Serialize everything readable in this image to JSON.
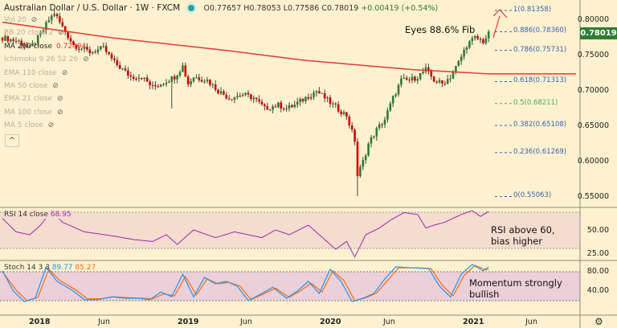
{
  "header": {
    "symbol": "Australian Dollar / U.S. Dollar · 1W · FXCM",
    "open": "O0.77657",
    "high": "H0.78053",
    "low": "L0.77586",
    "close": "C0.78019",
    "change": "+0.00419 (+0.54%)"
  },
  "indicators": [
    {
      "label": "Vol 20",
      "active": false
    },
    {
      "label": "BB 20 close 2",
      "active": false
    },
    {
      "label": "MA 200 close",
      "value": "0.72404",
      "active": true
    },
    {
      "label": "Ichimoku 9 26 52 26",
      "active": false
    },
    {
      "label": "EMA 110 close",
      "active": false
    },
    {
      "label": "MA 50 close",
      "active": false
    },
    {
      "label": "EMA 21 close",
      "active": false
    },
    {
      "label": "MA 100 close",
      "active": false
    },
    {
      "label": "MA 5 close",
      "active": false
    }
  ],
  "collapse_icon": "^",
  "fib_levels": [
    {
      "label": "1(0.81358)",
      "price": 0.81358
    },
    {
      "label": "0.886(0.78360)",
      "price": 0.7836
    },
    {
      "label": "0.786(0.75731)",
      "price": 0.75731
    },
    {
      "label": "0.618(0.71313)",
      "price": 0.71313
    },
    {
      "label": "0.5(0.68211)",
      "price": 0.68211
    },
    {
      "label": "0.382(0.65108)",
      "price": 0.65108
    },
    {
      "label": "0.236(0.61269)",
      "price": 0.61269
    },
    {
      "label": "0(0.55063)",
      "price": 0.55063
    }
  ],
  "price_axis": [
    "0.80000",
    "0.75000",
    "0.70000",
    "0.65000",
    "0.60000",
    "0.55000"
  ],
  "last_price": "0.78019",
  "annotations": {
    "fib": "Eyes 88.6% Fib",
    "rsi_line1": "RSI above 60,",
    "rsi_line2": "bias higher",
    "stoch_line1": "Momentum strongly",
    "stoch_line2": "bullish"
  },
  "rsi": {
    "label": "RSI 14 close",
    "value": "68.95",
    "axis": [
      "50.00",
      "25.00"
    ]
  },
  "stoch": {
    "label": "Stoch 14 3 3",
    "k": "89.77",
    "d": "85.27",
    "axis": [
      "80.00",
      "40.00"
    ]
  },
  "time_axis": [
    "2018",
    "Jun",
    "2019",
    "Jun",
    "2020",
    "Jun",
    "2021",
    "Jun"
  ],
  "settings_icon": "gear-icon",
  "colors": {
    "up": "#2e7d32",
    "down": "#d50000",
    "ma": "#e53935",
    "rsi": "#9c27b0",
    "k": "#2196f3",
    "d": "#ff6d00"
  },
  "chart_data": {
    "type": "candlestick",
    "price_anchors": [
      [
        0,
        0.775
      ],
      [
        6,
        0.77
      ],
      [
        10,
        0.76
      ],
      [
        14,
        0.78
      ],
      [
        17,
        0.8
      ],
      [
        19,
        0.81
      ],
      [
        22,
        0.79
      ],
      [
        26,
        0.765
      ],
      [
        32,
        0.755
      ],
      [
        37,
        0.76
      ],
      [
        41,
        0.74
      ],
      [
        47,
        0.72
      ],
      [
        51,
        0.72
      ],
      [
        55,
        0.705
      ],
      [
        58,
        0.71
      ],
      [
        63,
        0.72
      ],
      [
        66,
        0.735
      ],
      [
        68,
        0.71
      ],
      [
        70,
        0.72
      ],
      [
        75,
        0.715
      ],
      [
        79,
        0.7
      ],
      [
        83,
        0.69
      ],
      [
        88,
        0.695
      ],
      [
        92,
        0.69
      ],
      [
        96,
        0.675
      ],
      [
        101,
        0.68
      ],
      [
        104,
        0.675
      ],
      [
        107,
        0.68
      ],
      [
        111,
        0.69
      ],
      [
        115,
        0.7
      ],
      [
        118,
        0.69
      ],
      [
        121,
        0.68
      ],
      [
        126,
        0.665
      ],
      [
        129,
        0.63
      ],
      [
        130,
        0.58
      ],
      [
        132,
        0.6
      ],
      [
        134,
        0.625
      ],
      [
        137,
        0.645
      ],
      [
        140,
        0.66
      ],
      [
        143,
        0.69
      ],
      [
        146,
        0.715
      ],
      [
        149,
        0.715
      ],
      [
        152,
        0.72
      ],
      [
        155,
        0.73
      ],
      [
        158,
        0.715
      ],
      [
        161,
        0.71
      ],
      [
        164,
        0.72
      ],
      [
        167,
        0.74
      ],
      [
        170,
        0.765
      ],
      [
        173,
        0.775
      ],
      [
        176,
        0.77
      ],
      [
        178,
        0.78
      ]
    ],
    "ma200_anchors": [
      [
        0,
        0.797
      ],
      [
        40,
        0.775
      ],
      [
        80,
        0.758
      ],
      [
        111,
        0.743
      ],
      [
        150,
        0.73
      ],
      [
        178,
        0.724
      ]
    ],
    "rsi_anchors": [
      [
        0,
        62
      ],
      [
        5,
        48
      ],
      [
        10,
        45
      ],
      [
        14,
        55
      ],
      [
        18,
        70
      ],
      [
        22,
        58
      ],
      [
        30,
        48
      ],
      [
        40,
        44
      ],
      [
        48,
        40
      ],
      [
        55,
        38
      ],
      [
        60,
        45
      ],
      [
        64,
        35
      ],
      [
        70,
        50
      ],
      [
        78,
        42
      ],
      [
        85,
        48
      ],
      [
        95,
        42
      ],
      [
        100,
        50
      ],
      [
        105,
        45
      ],
      [
        112,
        55
      ],
      [
        118,
        40
      ],
      [
        122,
        30
      ],
      [
        126,
        38
      ],
      [
        129,
        22
      ],
      [
        133,
        45
      ],
      [
        138,
        52
      ],
      [
        142,
        60
      ],
      [
        147,
        68
      ],
      [
        152,
        66
      ],
      [
        155,
        52
      ],
      [
        158,
        55
      ],
      [
        162,
        58
      ],
      [
        168,
        66
      ],
      [
        172,
        70
      ],
      [
        175,
        64
      ],
      [
        178,
        69
      ]
    ],
    "stoch_k_anchors": [
      [
        0,
        82
      ],
      [
        4,
        40
      ],
      [
        8,
        18
      ],
      [
        12,
        25
      ],
      [
        16,
        90
      ],
      [
        20,
        60
      ],
      [
        26,
        40
      ],
      [
        30,
        22
      ],
      [
        35,
        22
      ],
      [
        40,
        28
      ],
      [
        45,
        25
      ],
      [
        50,
        25
      ],
      [
        54,
        22
      ],
      [
        58,
        38
      ],
      [
        62,
        28
      ],
      [
        66,
        75
      ],
      [
        70,
        28
      ],
      [
        74,
        68
      ],
      [
        78,
        55
      ],
      [
        82,
        60
      ],
      [
        86,
        50
      ],
      [
        90,
        20
      ],
      [
        95,
        35
      ],
      [
        99,
        48
      ],
      [
        104,
        25
      ],
      [
        108,
        40
      ],
      [
        112,
        60
      ],
      [
        116,
        35
      ],
      [
        120,
        85
      ],
      [
        124,
        60
      ],
      [
        128,
        18
      ],
      [
        132,
        25
      ],
      [
        136,
        35
      ],
      [
        140,
        65
      ],
      [
        144,
        90
      ],
      [
        150,
        88
      ],
      [
        156,
        87
      ],
      [
        160,
        50
      ],
      [
        164,
        28
      ],
      [
        168,
        75
      ],
      [
        172,
        95
      ],
      [
        176,
        82
      ],
      [
        178,
        89.77
      ]
    ],
    "stoch_d_anchors": [
      [
        0,
        80
      ],
      [
        5,
        42
      ],
      [
        9,
        20
      ],
      [
        13,
        27
      ],
      [
        17,
        85
      ],
      [
        21,
        62
      ],
      [
        27,
        42
      ],
      [
        31,
        24
      ],
      [
        36,
        24
      ],
      [
        41,
        28
      ],
      [
        46,
        26
      ],
      [
        51,
        25
      ],
      [
        55,
        24
      ],
      [
        59,
        34
      ],
      [
        63,
        30
      ],
      [
        67,
        70
      ],
      [
        71,
        32
      ],
      [
        75,
        65
      ],
      [
        79,
        55
      ],
      [
        83,
        58
      ],
      [
        87,
        50
      ],
      [
        91,
        22
      ],
      [
        96,
        35
      ],
      [
        100,
        46
      ],
      [
        105,
        27
      ],
      [
        109,
        40
      ],
      [
        113,
        56
      ],
      [
        117,
        38
      ],
      [
        121,
        82
      ],
      [
        125,
        62
      ],
      [
        129,
        20
      ],
      [
        133,
        26
      ],
      [
        137,
        36
      ],
      [
        141,
        62
      ],
      [
        145,
        88
      ],
      [
        151,
        88
      ],
      [
        157,
        86
      ],
      [
        161,
        52
      ],
      [
        165,
        30
      ],
      [
        169,
        72
      ],
      [
        173,
        93
      ],
      [
        177,
        84
      ],
      [
        178,
        85.27
      ]
    ]
  }
}
